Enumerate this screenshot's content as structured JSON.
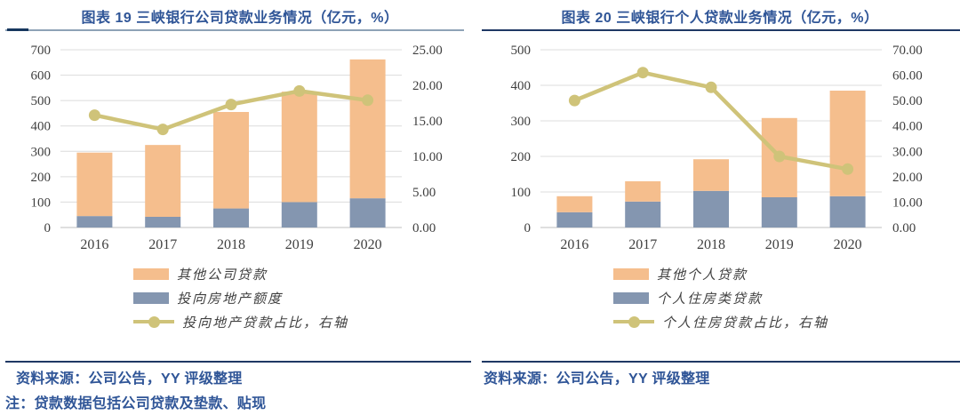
{
  "chart_data": [
    {
      "type": "bar",
      "caption": "图表 19 三峡银行公司贷款业务情况（亿元，%）",
      "categories": [
        "2016",
        "2017",
        "2018",
        "2019",
        "2020"
      ],
      "series": [
        {
          "name": "投向房地产额度",
          "type": "bar",
          "stack": "total",
          "color": "#8496B0",
          "values": [
            45,
            42,
            75,
            100,
            115
          ]
        },
        {
          "name": "其他公司贷款",
          "type": "bar",
          "stack": "total",
          "color": "#F5BE8D",
          "values": [
            250,
            283,
            380,
            435,
            547
          ]
        },
        {
          "name": "投向地产贷款占比，右轴",
          "type": "line",
          "axis": "right",
          "color": "#CFC379",
          "values": [
            15.8,
            13.8,
            17.3,
            19.2,
            17.9
          ]
        }
      ],
      "left_axis": {
        "min": 0,
        "max": 700,
        "step": 100
      },
      "right_axis": {
        "min": 0,
        "max": 25,
        "step": 5,
        "decimals": 2
      },
      "grid": true,
      "legend_position": "bottom",
      "legend": [
        {
          "label": "其他公司贷款",
          "marker": "bar",
          "color": "#F5BE8D"
        },
        {
          "label": "投向房地产额度",
          "marker": "bar",
          "color": "#8496B0"
        },
        {
          "label": "投向地产贷款占比，右轴",
          "marker": "line",
          "color": "#CFC379"
        }
      ],
      "source": "资料来源：公司公告，YY 评级整理",
      "note": "注：贷款数据包括公司贷款及垫款、贴现"
    },
    {
      "type": "bar",
      "caption": "图表 20 三峡银行个人贷款业务情况（亿元，%）",
      "categories": [
        "2016",
        "2017",
        "2018",
        "2019",
        "2020"
      ],
      "series": [
        {
          "name": "个人住房类贷款",
          "type": "bar",
          "stack": "total",
          "color": "#8496B0",
          "values": [
            43,
            73,
            103,
            85,
            88
          ]
        },
        {
          "name": "其他个人贷款",
          "type": "bar",
          "stack": "total",
          "color": "#F5BE8D",
          "values": [
            45,
            57,
            89,
            223,
            297
          ]
        },
        {
          "name": "个人住房贷款占比，右轴",
          "type": "line",
          "axis": "right",
          "color": "#CFC379",
          "values": [
            50.0,
            61.0,
            55.2,
            28.0,
            23.0
          ]
        }
      ],
      "left_axis": {
        "min": 0,
        "max": 500,
        "step": 100
      },
      "right_axis": {
        "min": 0,
        "max": 70,
        "step": 10,
        "decimals": 2
      },
      "grid": true,
      "legend_position": "bottom",
      "legend": [
        {
          "label": "其他个人贷款",
          "marker": "bar",
          "color": "#F5BE8D"
        },
        {
          "label": "个人住房类贷款",
          "marker": "bar",
          "color": "#8496B0"
        },
        {
          "label": "个人住房贷款占比，右轴",
          "marker": "line",
          "color": "#CFC379"
        }
      ],
      "source": "资料来源：公司公告，YY 评级整理"
    }
  ],
  "colors": {
    "title_text": "#2F5597",
    "rule_dark": "#1F3864",
    "rule_light": "#8EA3B6",
    "grid_line": "#DCDCDC",
    "axis_text": "#3F3F3F",
    "bar_orange": "#F5BE8D",
    "bar_blue": "#8496B0",
    "line_gold": "#CFC379"
  }
}
